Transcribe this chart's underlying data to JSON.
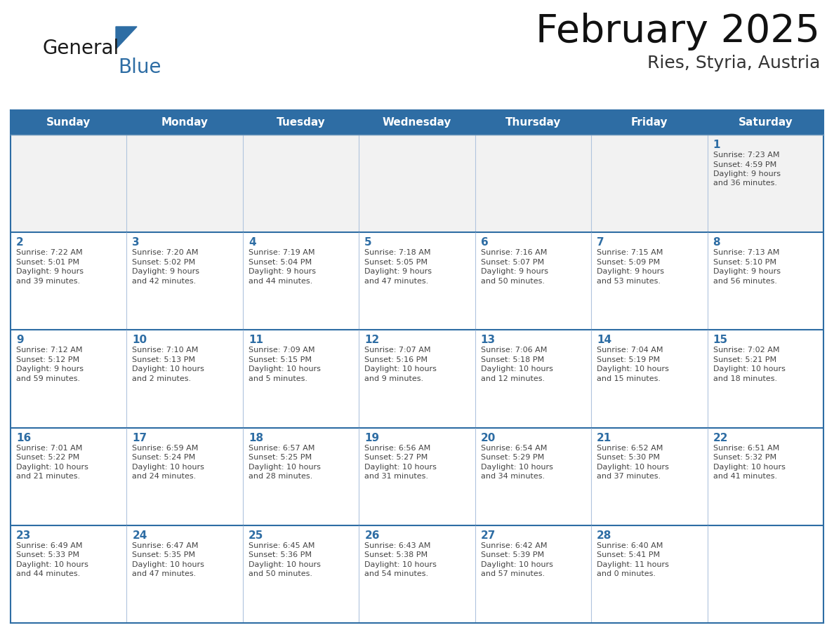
{
  "title": "February 2025",
  "subtitle": "Ries, Styria, Austria",
  "header_bg": "#2E6DA4",
  "header_text_color": "#FFFFFF",
  "days_of_week": [
    "Sunday",
    "Monday",
    "Tuesday",
    "Wednesday",
    "Thursday",
    "Friday",
    "Saturday"
  ],
  "cell_bg": "#FFFFFF",
  "alt_row_bg": "#F0F4F8",
  "cell_border_color": "#2E6DA4",
  "cell_border_light": "#B0C4DE",
  "text_color": "#444444",
  "day_number_color": "#2E6DA4",
  "logo_general_color": "#1a1a1a",
  "logo_blue_color": "#2E6DA4",
  "calendar_data": [
    [
      {
        "day": "",
        "info": ""
      },
      {
        "day": "",
        "info": ""
      },
      {
        "day": "",
        "info": ""
      },
      {
        "day": "",
        "info": ""
      },
      {
        "day": "",
        "info": ""
      },
      {
        "day": "",
        "info": ""
      },
      {
        "day": "1",
        "info": "Sunrise: 7:23 AM\nSunset: 4:59 PM\nDaylight: 9 hours\nand 36 minutes."
      }
    ],
    [
      {
        "day": "2",
        "info": "Sunrise: 7:22 AM\nSunset: 5:01 PM\nDaylight: 9 hours\nand 39 minutes."
      },
      {
        "day": "3",
        "info": "Sunrise: 7:20 AM\nSunset: 5:02 PM\nDaylight: 9 hours\nand 42 minutes."
      },
      {
        "day": "4",
        "info": "Sunrise: 7:19 AM\nSunset: 5:04 PM\nDaylight: 9 hours\nand 44 minutes."
      },
      {
        "day": "5",
        "info": "Sunrise: 7:18 AM\nSunset: 5:05 PM\nDaylight: 9 hours\nand 47 minutes."
      },
      {
        "day": "6",
        "info": "Sunrise: 7:16 AM\nSunset: 5:07 PM\nDaylight: 9 hours\nand 50 minutes."
      },
      {
        "day": "7",
        "info": "Sunrise: 7:15 AM\nSunset: 5:09 PM\nDaylight: 9 hours\nand 53 minutes."
      },
      {
        "day": "8",
        "info": "Sunrise: 7:13 AM\nSunset: 5:10 PM\nDaylight: 9 hours\nand 56 minutes."
      }
    ],
    [
      {
        "day": "9",
        "info": "Sunrise: 7:12 AM\nSunset: 5:12 PM\nDaylight: 9 hours\nand 59 minutes."
      },
      {
        "day": "10",
        "info": "Sunrise: 7:10 AM\nSunset: 5:13 PM\nDaylight: 10 hours\nand 2 minutes."
      },
      {
        "day": "11",
        "info": "Sunrise: 7:09 AM\nSunset: 5:15 PM\nDaylight: 10 hours\nand 5 minutes."
      },
      {
        "day": "12",
        "info": "Sunrise: 7:07 AM\nSunset: 5:16 PM\nDaylight: 10 hours\nand 9 minutes."
      },
      {
        "day": "13",
        "info": "Sunrise: 7:06 AM\nSunset: 5:18 PM\nDaylight: 10 hours\nand 12 minutes."
      },
      {
        "day": "14",
        "info": "Sunrise: 7:04 AM\nSunset: 5:19 PM\nDaylight: 10 hours\nand 15 minutes."
      },
      {
        "day": "15",
        "info": "Sunrise: 7:02 AM\nSunset: 5:21 PM\nDaylight: 10 hours\nand 18 minutes."
      }
    ],
    [
      {
        "day": "16",
        "info": "Sunrise: 7:01 AM\nSunset: 5:22 PM\nDaylight: 10 hours\nand 21 minutes."
      },
      {
        "day": "17",
        "info": "Sunrise: 6:59 AM\nSunset: 5:24 PM\nDaylight: 10 hours\nand 24 minutes."
      },
      {
        "day": "18",
        "info": "Sunrise: 6:57 AM\nSunset: 5:25 PM\nDaylight: 10 hours\nand 28 minutes."
      },
      {
        "day": "19",
        "info": "Sunrise: 6:56 AM\nSunset: 5:27 PM\nDaylight: 10 hours\nand 31 minutes."
      },
      {
        "day": "20",
        "info": "Sunrise: 6:54 AM\nSunset: 5:29 PM\nDaylight: 10 hours\nand 34 minutes."
      },
      {
        "day": "21",
        "info": "Sunrise: 6:52 AM\nSunset: 5:30 PM\nDaylight: 10 hours\nand 37 minutes."
      },
      {
        "day": "22",
        "info": "Sunrise: 6:51 AM\nSunset: 5:32 PM\nDaylight: 10 hours\nand 41 minutes."
      }
    ],
    [
      {
        "day": "23",
        "info": "Sunrise: 6:49 AM\nSunset: 5:33 PM\nDaylight: 10 hours\nand 44 minutes."
      },
      {
        "day": "24",
        "info": "Sunrise: 6:47 AM\nSunset: 5:35 PM\nDaylight: 10 hours\nand 47 minutes."
      },
      {
        "day": "25",
        "info": "Sunrise: 6:45 AM\nSunset: 5:36 PM\nDaylight: 10 hours\nand 50 minutes."
      },
      {
        "day": "26",
        "info": "Sunrise: 6:43 AM\nSunset: 5:38 PM\nDaylight: 10 hours\nand 54 minutes."
      },
      {
        "day": "27",
        "info": "Sunrise: 6:42 AM\nSunset: 5:39 PM\nDaylight: 10 hours\nand 57 minutes."
      },
      {
        "day": "28",
        "info": "Sunrise: 6:40 AM\nSunset: 5:41 PM\nDaylight: 11 hours\nand 0 minutes."
      },
      {
        "day": "",
        "info": ""
      }
    ]
  ]
}
